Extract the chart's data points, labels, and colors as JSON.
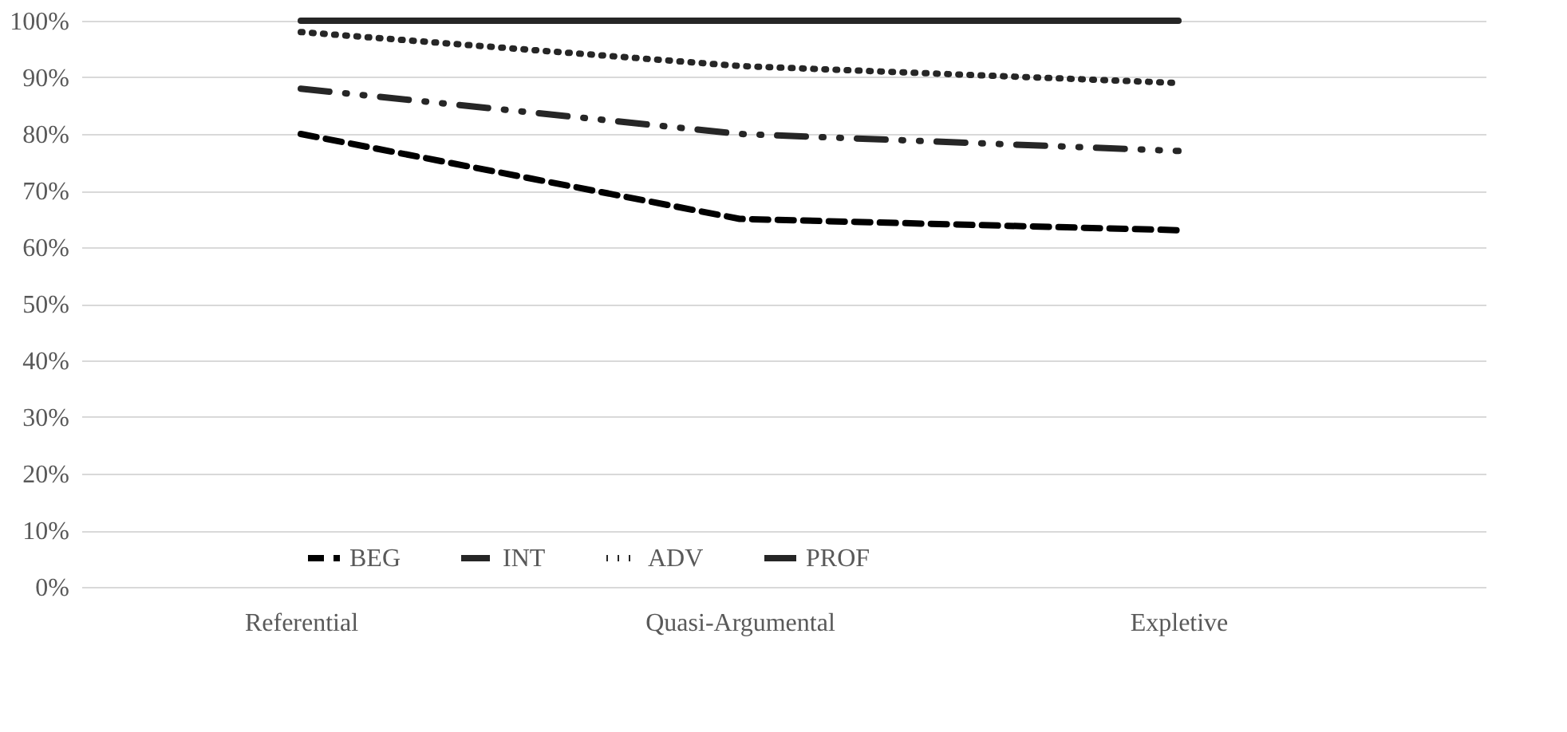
{
  "chart_data": {
    "type": "line",
    "categories": [
      "Referential",
      "Quasi-Argumental",
      "Expletive"
    ],
    "series": [
      {
        "name": "BEG",
        "color": "#000000",
        "line_style": "dashed",
        "values": [
          80,
          65,
          63
        ]
      },
      {
        "name": "INT",
        "color": "#262626",
        "line_style": "dashdot",
        "values": [
          88,
          80,
          77
        ]
      },
      {
        "name": "ADV",
        "color": "#262626",
        "line_style": "dotted",
        "values": [
          98,
          92,
          89
        ]
      },
      {
        "name": "PROF",
        "color": "#262626",
        "line_style": "solid",
        "values": [
          100,
          100,
          100
        ]
      }
    ],
    "ylim": [
      0,
      100
    ],
    "yticks": [
      {
        "value": 0,
        "label": "0%"
      },
      {
        "value": 10,
        "label": "10%"
      },
      {
        "value": 20,
        "label": "20%"
      },
      {
        "value": 30,
        "label": "30%"
      },
      {
        "value": 40,
        "label": "40%"
      },
      {
        "value": 50,
        "label": "50%"
      },
      {
        "value": 60,
        "label": "60%"
      },
      {
        "value": 70,
        "label": "70%"
      },
      {
        "value": 80,
        "label": "80%"
      },
      {
        "value": 90,
        "label": "90%"
      },
      {
        "value": 100,
        "label": "100%"
      }
    ],
    "grid": "y",
    "legend": "bottom",
    "marker": "none"
  }
}
